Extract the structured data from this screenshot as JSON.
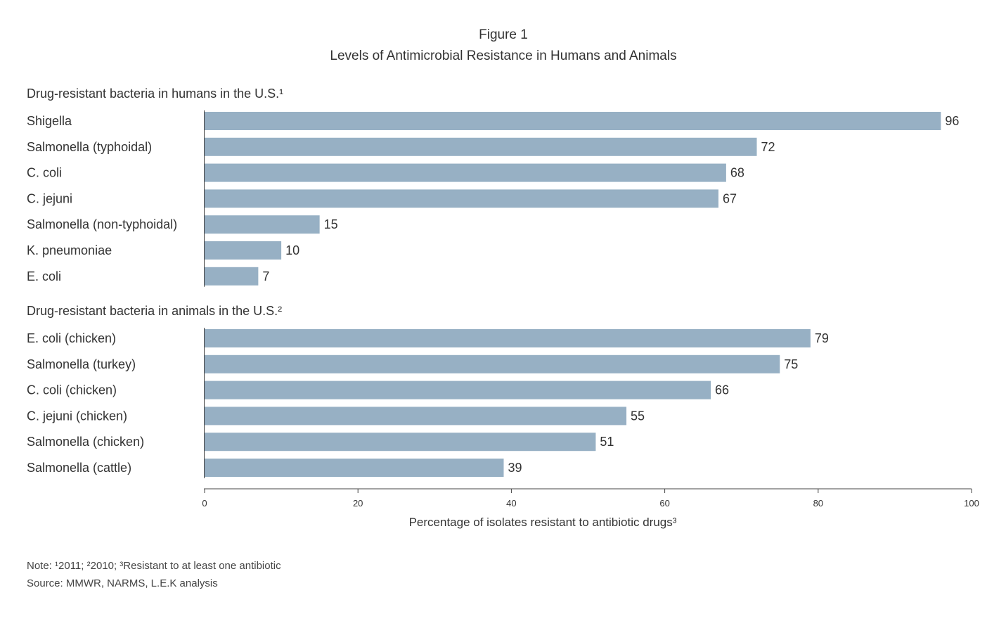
{
  "figure_label": "Figure 1",
  "title": "Levels of Antimicrobial Resistance in Humans and Animals",
  "notes": [
    "Note: ¹2011; ²2010; ³Resistant to at least one antibiotic",
    "Source: MMWR, NARMS, L.E.K analysis"
  ],
  "colors": {
    "bar": "#97b0c4",
    "text": "#333333",
    "axis": "#444444"
  },
  "chart_data": {
    "type": "bar",
    "orientation": "horizontal",
    "title": "Levels of Antimicrobial Resistance in Humans and Animals",
    "xlabel": "Percentage of isolates resistant to antibiotic drugs³",
    "xlim": [
      0,
      100
    ],
    "xticks": [
      "0",
      "20",
      "40",
      "60",
      "80",
      "100"
    ],
    "grid": false,
    "groups": [
      {
        "heading": "Drug-resistant bacteria in humans in the U.S.¹",
        "categories": [
          "Shigella",
          "Salmonella (typhoidal)",
          "C. coli",
          "C. jejuni",
          "Salmonella (non-typhoidal)",
          "K. pneumoniae",
          "E. coli"
        ],
        "values": [
          96,
          72,
          68,
          67,
          15,
          10,
          7
        ]
      },
      {
        "heading": "Drug-resistant bacteria in animals in the U.S.²",
        "categories": [
          "E. coli (chicken)",
          "Salmonella (turkey)",
          "C. coli (chicken)",
          "C. jejuni (chicken)",
          "Salmonella (chicken)",
          "Salmonella (cattle)"
        ],
        "values": [
          79,
          75,
          66,
          55,
          51,
          39
        ]
      }
    ]
  }
}
